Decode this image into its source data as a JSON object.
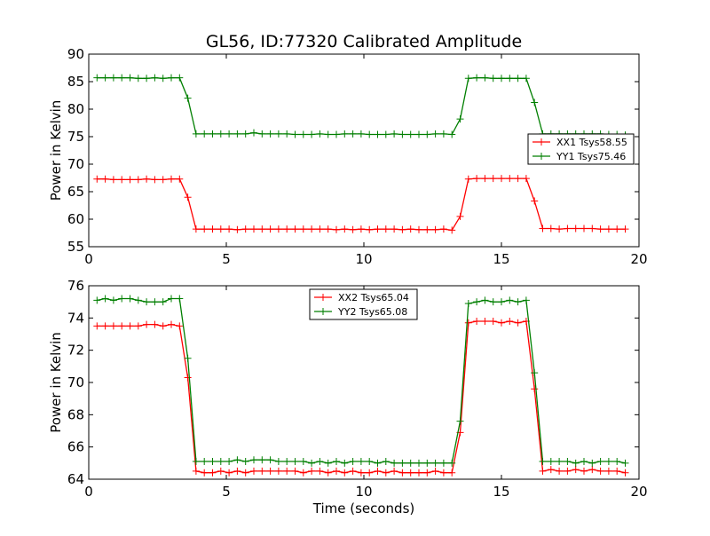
{
  "figure": {
    "title": "GL56, ID:77320 Calibrated Amplitude",
    "xlabel": "Time (seconds)"
  },
  "chart_data": [
    {
      "type": "line",
      "title": "GL56, ID:77320 Calibrated Amplitude",
      "xlabel": "",
      "ylabel": "Power in Kelvin",
      "xlim": [
        0,
        20
      ],
      "ylim": [
        55,
        90
      ],
      "xticks": [
        0,
        5,
        10,
        15,
        20
      ],
      "yticks": [
        55,
        60,
        65,
        70,
        75,
        80,
        85,
        90
      ],
      "grid": false,
      "legend_position": "right",
      "x": [
        0.3,
        0.6,
        0.9,
        1.2,
        1.5,
        1.8,
        2.1,
        2.4,
        2.7,
        3.0,
        3.3,
        3.6,
        3.9,
        4.2,
        4.5,
        4.8,
        5.1,
        5.4,
        5.7,
        6.0,
        6.3,
        6.6,
        6.9,
        7.2,
        7.5,
        7.8,
        8.1,
        8.4,
        8.7,
        9.0,
        9.3,
        9.6,
        9.9,
        10.2,
        10.5,
        10.8,
        11.1,
        11.4,
        11.7,
        12.0,
        12.3,
        12.6,
        12.9,
        13.2,
        13.5,
        13.8,
        14.1,
        14.4,
        14.7,
        15.0,
        15.3,
        15.6,
        15.9,
        16.2,
        16.5,
        16.8,
        17.1,
        17.4,
        17.7,
        18.0,
        18.3,
        18.6,
        18.9,
        19.2,
        19.5
      ],
      "series": [
        {
          "name": "XX1 Tsys58.55",
          "color": "#ff0000",
          "values": [
            67.3,
            67.3,
            67.2,
            67.2,
            67.2,
            67.2,
            67.3,
            67.2,
            67.2,
            67.3,
            67.3,
            64.0,
            58.2,
            58.2,
            58.2,
            58.2,
            58.2,
            58.1,
            58.2,
            58.2,
            58.2,
            58.2,
            58.2,
            58.2,
            58.2,
            58.2,
            58.2,
            58.2,
            58.2,
            58.1,
            58.2,
            58.1,
            58.2,
            58.1,
            58.2,
            58.2,
            58.2,
            58.1,
            58.2,
            58.1,
            58.1,
            58.1,
            58.2,
            58.0,
            60.5,
            67.3,
            67.4,
            67.4,
            67.4,
            67.4,
            67.4,
            67.4,
            67.4,
            63.3,
            58.3,
            58.3,
            58.2,
            58.3,
            58.3,
            58.3,
            58.3,
            58.2,
            58.2,
            58.2,
            58.2
          ]
        },
        {
          "name": "YY1 Tsys75.46",
          "color": "#007f00",
          "values": [
            85.7,
            85.7,
            85.7,
            85.7,
            85.7,
            85.6,
            85.6,
            85.7,
            85.6,
            85.7,
            85.7,
            82.0,
            75.5,
            75.5,
            75.5,
            75.5,
            75.5,
            75.5,
            75.5,
            75.7,
            75.5,
            75.5,
            75.5,
            75.5,
            75.4,
            75.4,
            75.4,
            75.5,
            75.4,
            75.4,
            75.5,
            75.5,
            75.5,
            75.4,
            75.4,
            75.4,
            75.5,
            75.4,
            75.4,
            75.4,
            75.4,
            75.5,
            75.5,
            75.4,
            78.2,
            85.6,
            85.7,
            85.7,
            85.6,
            85.6,
            85.6,
            85.6,
            85.6,
            81.2,
            75.5,
            75.5,
            75.5,
            75.5,
            75.5,
            75.5,
            75.5,
            75.5,
            75.4,
            75.4,
            75.3
          ]
        }
      ]
    },
    {
      "type": "line",
      "title": "",
      "xlabel": "Time (seconds)",
      "ylabel": "Power in Kelvin",
      "xlim": [
        0,
        20
      ],
      "ylim": [
        64,
        76
      ],
      "xticks": [
        0,
        5,
        10,
        15,
        20
      ],
      "yticks": [
        64,
        66,
        68,
        70,
        72,
        74,
        76
      ],
      "grid": false,
      "legend_position": "top-center",
      "x": [
        0.3,
        0.6,
        0.9,
        1.2,
        1.5,
        1.8,
        2.1,
        2.4,
        2.7,
        3.0,
        3.3,
        3.6,
        3.9,
        4.2,
        4.5,
        4.8,
        5.1,
        5.4,
        5.7,
        6.0,
        6.3,
        6.6,
        6.9,
        7.2,
        7.5,
        7.8,
        8.1,
        8.4,
        8.7,
        9.0,
        9.3,
        9.6,
        9.9,
        10.2,
        10.5,
        10.8,
        11.1,
        11.4,
        11.7,
        12.0,
        12.3,
        12.6,
        12.9,
        13.2,
        13.5,
        13.8,
        14.1,
        14.4,
        14.7,
        15.0,
        15.3,
        15.6,
        15.9,
        16.2,
        16.5,
        16.8,
        17.1,
        17.4,
        17.7,
        18.0,
        18.3,
        18.6,
        18.9,
        19.2,
        19.5
      ],
      "series": [
        {
          "name": "XX2 Tsys65.04",
          "color": "#ff0000",
          "values": [
            73.5,
            73.5,
            73.5,
            73.5,
            73.5,
            73.5,
            73.6,
            73.6,
            73.5,
            73.6,
            73.5,
            70.3,
            64.5,
            64.4,
            64.4,
            64.5,
            64.4,
            64.5,
            64.4,
            64.5,
            64.5,
            64.5,
            64.5,
            64.5,
            64.5,
            64.4,
            64.5,
            64.5,
            64.4,
            64.5,
            64.4,
            64.5,
            64.4,
            64.4,
            64.5,
            64.4,
            64.5,
            64.4,
            64.4,
            64.4,
            64.4,
            64.5,
            64.4,
            64.4,
            66.9,
            73.7,
            73.8,
            73.8,
            73.8,
            73.7,
            73.8,
            73.7,
            73.8,
            69.6,
            64.5,
            64.6,
            64.5,
            64.5,
            64.6,
            64.5,
            64.6,
            64.5,
            64.5,
            64.5,
            64.4
          ]
        },
        {
          "name": "YY2 Tsys65.08",
          "color": "#007f00",
          "values": [
            75.1,
            75.2,
            75.1,
            75.2,
            75.2,
            75.1,
            75.0,
            75.0,
            75.0,
            75.2,
            75.2,
            71.5,
            65.1,
            65.1,
            65.1,
            65.1,
            65.1,
            65.2,
            65.1,
            65.2,
            65.2,
            65.2,
            65.1,
            65.1,
            65.1,
            65.1,
            65.0,
            65.1,
            65.0,
            65.1,
            65.0,
            65.1,
            65.1,
            65.1,
            65.0,
            65.1,
            65.0,
            65.0,
            65.0,
            65.0,
            65.0,
            65.0,
            65.0,
            65.0,
            67.6,
            74.9,
            75.0,
            75.1,
            75.0,
            75.0,
            75.1,
            75.0,
            75.1,
            70.6,
            65.1,
            65.1,
            65.1,
            65.1,
            65.0,
            65.1,
            65.0,
            65.1,
            65.1,
            65.1,
            65.0
          ]
        }
      ]
    }
  ]
}
